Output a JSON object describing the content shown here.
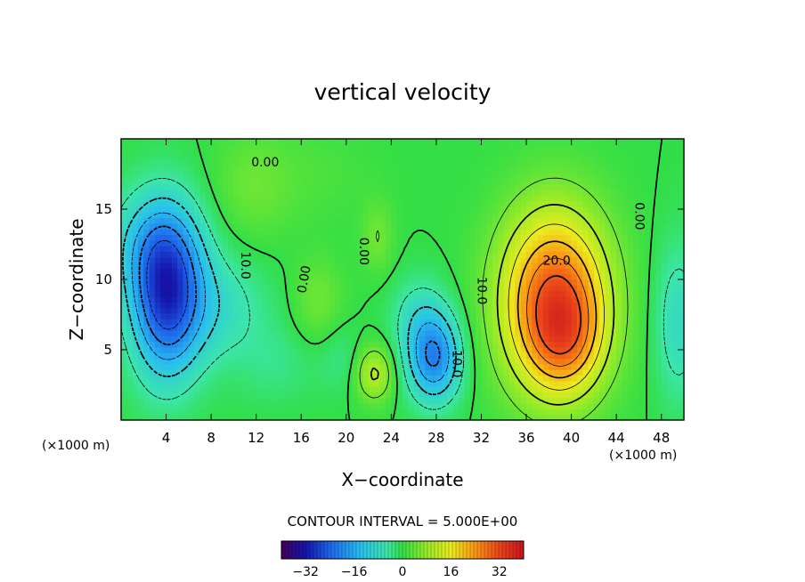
{
  "chart_data": {
    "type": "heatmap",
    "title": "vertical velocity",
    "xlabel": "X−coordinate",
    "ylabel": "Z−coordinate",
    "x_unit_left": "(×1000 m)",
    "x_unit_right": "(×1000 m)",
    "xlim": [
      0,
      50
    ],
    "ylim": [
      0,
      20
    ],
    "x_ticks": [
      4,
      8,
      12,
      16,
      20,
      24,
      28,
      32,
      36,
      40,
      44,
      48
    ],
    "y_ticks": [
      5,
      10,
      15
    ],
    "contour_interval_text": "CONTOUR INTERVAL = 5.000E+00",
    "colorbar": {
      "range": [
        -40,
        40
      ],
      "ticks": [
        -32,
        -16,
        0,
        16,
        32
      ]
    },
    "contour_labels": [
      {
        "text": "0.00",
        "x": 12.8,
        "y": 18.3,
        "angle": 0
      },
      {
        "text": "10.0",
        "x": 11.0,
        "y": 11.0,
        "angle": 90
      },
      {
        "text": "0.00",
        "x": 16.3,
        "y": 10.0,
        "angle": -80
      },
      {
        "text": "0.00",
        "x": 21.5,
        "y": 12.0,
        "angle": 90
      },
      {
        "text": "20.0",
        "x": 38.7,
        "y": 11.3,
        "angle": 0
      },
      {
        "text": "10.0",
        "x": 32.0,
        "y": 9.2,
        "angle": 90
      },
      {
        "text": "0.00",
        "x": 46.0,
        "y": 14.5,
        "angle": 90
      },
      {
        "text": "10.0",
        "x": 29.8,
        "y": 4.0,
        "angle": 90
      }
    ],
    "features": [
      {
        "x": 38.5,
        "z": 8.5,
        "sx": 3.4,
        "sz": 4.6,
        "amp": 30
      },
      {
        "x": 39.5,
        "z": 5.8,
        "sx": 2.2,
        "sz": 2.6,
        "amp": 10
      },
      {
        "x": 4.0,
        "z": 8.8,
        "sx": 2.2,
        "sz": 4.0,
        "amp": -26
      },
      {
        "x": 3.0,
        "z": 12.5,
        "sx": 3.0,
        "sz": 2.8,
        "amp": -9
      },
      {
        "x": 8.5,
        "z": 8.0,
        "sx": 3.2,
        "sz": 2.8,
        "amp": -7
      },
      {
        "x": 27.8,
        "z": 4.4,
        "sx": 1.7,
        "sz": 2.2,
        "amp": -20
      },
      {
        "x": 26.5,
        "z": 7.5,
        "sx": 1.8,
        "sz": 2.0,
        "amp": -6
      },
      {
        "x": 22.5,
        "z": 3.3,
        "sx": 1.2,
        "sz": 1.4,
        "amp": 11
      },
      {
        "x": 22.8,
        "z": 13.0,
        "sx": 1.0,
        "sz": 1.8,
        "amp": 5
      },
      {
        "x": 17.5,
        "z": 8.5,
        "sx": 1.6,
        "sz": 2.2,
        "amp": 5
      },
      {
        "x": 19.5,
        "z": 4.5,
        "sx": 1.4,
        "sz": 1.8,
        "amp": -3
      },
      {
        "x": 14.0,
        "z": 4.0,
        "sx": 2.5,
        "sz": 2.0,
        "amp": -3
      },
      {
        "x": 11.5,
        "z": 16.5,
        "sx": 2.5,
        "sz": 3.0,
        "amp": 4
      },
      {
        "x": 49.5,
        "z": 7.0,
        "sx": 1.5,
        "sz": 4.0,
        "amp": -8
      },
      {
        "x": 17.0,
        "z": 17.5,
        "sx": 4.0,
        "sz": 2.5,
        "amp": 2
      }
    ]
  }
}
